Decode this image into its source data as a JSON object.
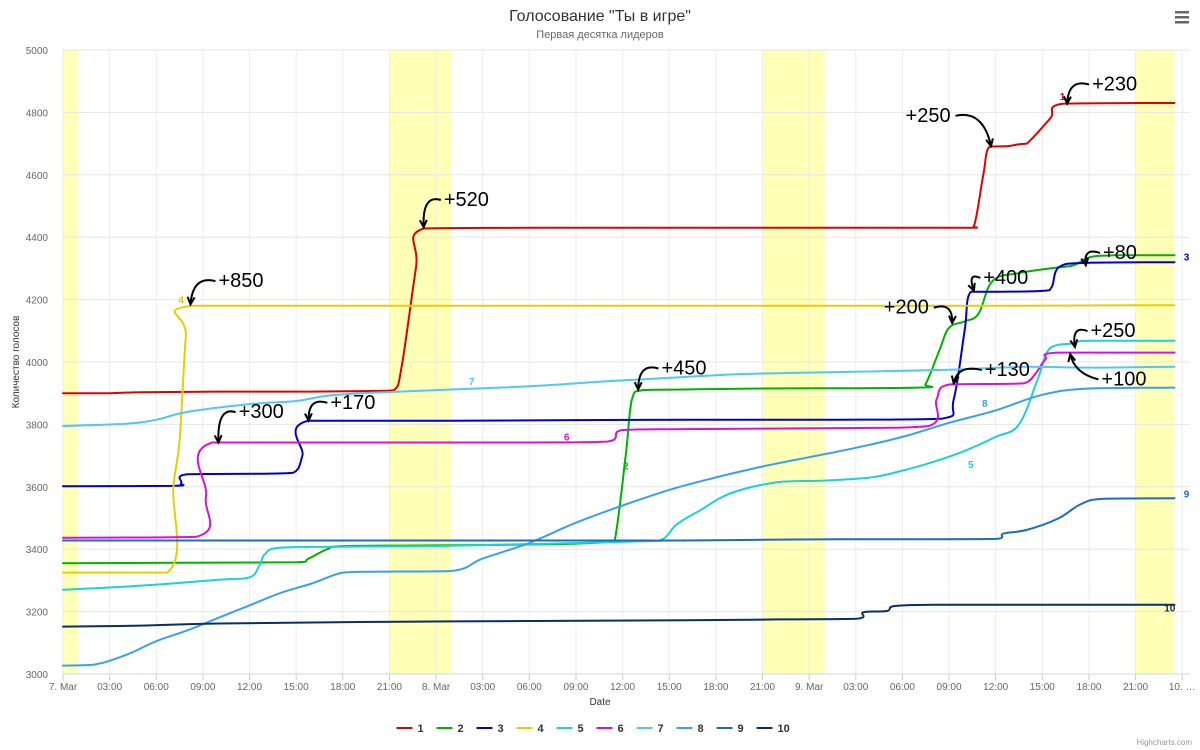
{
  "chart_data": {
    "type": "line",
    "title": "Голосование \"Ты в игре\"",
    "subtitle": "Первая десятка лидеров",
    "xlabel": "Date",
    "ylabel": "Количество голосов",
    "ylim": [
      3000,
      5000
    ],
    "yticks": [
      3000,
      3200,
      3400,
      3600,
      3800,
      4000,
      4200,
      4400,
      4600,
      4800,
      5000
    ],
    "xlim_hours": [
      0,
      72.5
    ],
    "xticks": [
      {
        "h": 0,
        "label": "7. Mar"
      },
      {
        "h": 3,
        "label": "03:00"
      },
      {
        "h": 6,
        "label": "06:00"
      },
      {
        "h": 9,
        "label": "09:00"
      },
      {
        "h": 12,
        "label": "12:00"
      },
      {
        "h": 15,
        "label": "15:00"
      },
      {
        "h": 18,
        "label": "18:00"
      },
      {
        "h": 21,
        "label": "21:00"
      },
      {
        "h": 24,
        "label": "8. Mar"
      },
      {
        "h": 27,
        "label": "03:00"
      },
      {
        "h": 30,
        "label": "06:00"
      },
      {
        "h": 33,
        "label": "09:00"
      },
      {
        "h": 36,
        "label": "12:00"
      },
      {
        "h": 39,
        "label": "15:00"
      },
      {
        "h": 42,
        "label": "18:00"
      },
      {
        "h": 45,
        "label": "21:00"
      },
      {
        "h": 48,
        "label": "9. Mar"
      },
      {
        "h": 51,
        "label": "03:00"
      },
      {
        "h": 54,
        "label": "06:00"
      },
      {
        "h": 57,
        "label": "09:00"
      },
      {
        "h": 60,
        "label": "12:00"
      },
      {
        "h": 63,
        "label": "15:00"
      },
      {
        "h": 66,
        "label": "18:00"
      },
      {
        "h": 69,
        "label": "21:00"
      },
      {
        "h": 72,
        "label": "10. …"
      }
    ],
    "night_bands": [
      [
        0,
        1
      ],
      [
        21,
        25
      ],
      [
        45,
        49
      ],
      [
        69,
        71.5
      ]
    ],
    "grid": true,
    "legend": "bottom-center",
    "series": [
      {
        "name": "1",
        "color": "#e00000",
        "label": "1",
        "points": [
          [
            0,
            3900
          ],
          [
            3,
            3900
          ],
          [
            5,
            3903
          ],
          [
            10,
            3905
          ],
          [
            16,
            3905
          ],
          [
            20,
            3907
          ],
          [
            21.3,
            3910
          ],
          [
            21.8,
            3990
          ],
          [
            22.7,
            4300
          ],
          [
            23.2,
            4428
          ],
          [
            30,
            4430
          ],
          [
            40,
            4430
          ],
          [
            50,
            4430
          ],
          [
            58,
            4430
          ],
          [
            58.6,
            4435
          ],
          [
            59.2,
            4600
          ],
          [
            59.6,
            4690
          ],
          [
            60.8,
            4692
          ],
          [
            61.5,
            4698
          ],
          [
            62,
            4700
          ],
          [
            63.5,
            4780
          ],
          [
            64.3,
            4828
          ],
          [
            70,
            4830
          ],
          [
            71.5,
            4830
          ]
        ]
      },
      {
        "name": "2",
        "color": "#00b300",
        "label": "2",
        "points": [
          [
            0,
            3355
          ],
          [
            10,
            3357
          ],
          [
            15,
            3358
          ],
          [
            15.8,
            3370
          ],
          [
            17,
            3400
          ],
          [
            18,
            3410
          ],
          [
            23,
            3412
          ],
          [
            30,
            3415
          ],
          [
            33,
            3418
          ],
          [
            35,
            3423
          ],
          [
            35.5,
            3430
          ],
          [
            36.2,
            3700
          ],
          [
            36.6,
            3880
          ],
          [
            37.3,
            3910
          ],
          [
            40,
            3912
          ],
          [
            45,
            3915
          ],
          [
            55,
            3918
          ],
          [
            55.5,
            3930
          ],
          [
            56.4,
            4040
          ],
          [
            57,
            4110
          ],
          [
            58,
            4130
          ],
          [
            58.9,
            4155
          ],
          [
            59.8,
            4260
          ],
          [
            61.5,
            4285
          ],
          [
            63.5,
            4300
          ],
          [
            65,
            4310
          ],
          [
            66,
            4335
          ],
          [
            67.5,
            4342
          ],
          [
            71.5,
            4342
          ]
        ]
      },
      {
        "name": "3",
        "color": "#0000cc",
        "label": "3",
        "points": [
          [
            0,
            3602
          ],
          [
            7,
            3603
          ],
          [
            7.6,
            3612
          ],
          [
            8,
            3640
          ],
          [
            13,
            3642
          ],
          [
            14.8,
            3645
          ],
          [
            15.4,
            3700
          ],
          [
            15.8,
            3812
          ],
          [
            25,
            3812
          ],
          [
            40,
            3815
          ],
          [
            50,
            3815
          ],
          [
            56.5,
            3818
          ],
          [
            57.3,
            3880
          ],
          [
            58,
            4100
          ],
          [
            58.4,
            4225
          ],
          [
            60,
            4225
          ],
          [
            63,
            4228
          ],
          [
            63.6,
            4240
          ],
          [
            64.1,
            4305
          ],
          [
            66,
            4318
          ],
          [
            71.5,
            4320
          ]
        ]
      },
      {
        "name": "4",
        "color": "#e3d000",
        "label": "4",
        "points": [
          [
            0,
            3325
          ],
          [
            6.7,
            3325
          ],
          [
            7.1,
            3600
          ],
          [
            7.5,
            3750
          ],
          [
            7.9,
            4080
          ],
          [
            8.2,
            4180
          ],
          [
            20,
            4180
          ],
          [
            40,
            4180
          ],
          [
            60,
            4180
          ],
          [
            71.5,
            4182
          ]
        ]
      },
      {
        "name": "5",
        "color": "#1dd1d6",
        "label": "5",
        "points": [
          [
            0,
            3270
          ],
          [
            4,
            3280
          ],
          [
            7,
            3290
          ],
          [
            10,
            3302
          ],
          [
            12,
            3310
          ],
          [
            12.6,
            3345
          ],
          [
            13,
            3385
          ],
          [
            14,
            3405
          ],
          [
            18,
            3408
          ],
          [
            24,
            3410
          ],
          [
            37,
            3425
          ],
          [
            38.5,
            3430
          ],
          [
            39.5,
            3480
          ],
          [
            41,
            3525
          ],
          [
            43,
            3580
          ],
          [
            46,
            3615
          ],
          [
            49,
            3620
          ],
          [
            52,
            3630
          ],
          [
            54,
            3652
          ],
          [
            56,
            3680
          ],
          [
            58,
            3715
          ],
          [
            60,
            3760
          ],
          [
            61.5,
            3800
          ],
          [
            62.7,
            3945
          ],
          [
            63.5,
            4045
          ],
          [
            65,
            4060
          ],
          [
            66,
            4068
          ],
          [
            71.5,
            4068
          ]
        ]
      },
      {
        "name": "6",
        "color": "#d812d8",
        "label": "6",
        "points": [
          [
            0,
            3437
          ],
          [
            8.6,
            3440
          ],
          [
            9.2,
            3570
          ],
          [
            9.6,
            3742
          ],
          [
            20,
            3742
          ],
          [
            30,
            3742
          ],
          [
            35,
            3745
          ],
          [
            36,
            3782
          ],
          [
            40,
            3785
          ],
          [
            50,
            3788
          ],
          [
            55.7,
            3795
          ],
          [
            56.2,
            3880
          ],
          [
            57,
            3928
          ],
          [
            61,
            3930
          ],
          [
            62,
            3935
          ],
          [
            62.6,
            3965
          ],
          [
            63.2,
            4008
          ],
          [
            64,
            4030
          ],
          [
            71.5,
            4030
          ]
        ]
      },
      {
        "name": "7",
        "color": "#50c8f5",
        "label": "7",
        "points": [
          [
            0,
            3795
          ],
          [
            4,
            3802
          ],
          [
            6,
            3815
          ],
          [
            8,
            3840
          ],
          [
            12,
            3865
          ],
          [
            15,
            3875
          ],
          [
            17,
            3892
          ],
          [
            20,
            3902
          ],
          [
            25,
            3912
          ],
          [
            30,
            3922
          ],
          [
            35,
            3938
          ],
          [
            40,
            3952
          ],
          [
            44,
            3962
          ],
          [
            50,
            3968
          ],
          [
            57,
            3975
          ],
          [
            62,
            3985
          ],
          [
            66,
            3982
          ],
          [
            71.5,
            3985
          ]
        ]
      },
      {
        "name": "8",
        "color": "#3a9ff2",
        "label": "8",
        "points": [
          [
            0,
            3027
          ],
          [
            2,
            3030
          ],
          [
            4,
            3060
          ],
          [
            6,
            3105
          ],
          [
            8,
            3140
          ],
          [
            10,
            3180
          ],
          [
            12,
            3220
          ],
          [
            14,
            3260
          ],
          [
            16,
            3290
          ],
          [
            18,
            3325
          ],
          [
            20,
            3328
          ],
          [
            25,
            3330
          ],
          [
            27,
            3370
          ],
          [
            30,
            3420
          ],
          [
            33,
            3485
          ],
          [
            36,
            3540
          ],
          [
            39,
            3590
          ],
          [
            42,
            3630
          ],
          [
            45,
            3665
          ],
          [
            48,
            3695
          ],
          [
            51,
            3725
          ],
          [
            54,
            3760
          ],
          [
            57,
            3805
          ],
          [
            60,
            3845
          ],
          [
            63,
            3895
          ],
          [
            66,
            3915
          ],
          [
            71.5,
            3918
          ]
        ]
      },
      {
        "name": "9",
        "color": "#1f6ac3",
        "label": "9",
        "points": [
          [
            0,
            3428
          ],
          [
            10,
            3428
          ],
          [
            20,
            3428
          ],
          [
            30,
            3428
          ],
          [
            40,
            3428
          ],
          [
            45,
            3430
          ],
          [
            50,
            3432
          ],
          [
            56,
            3432
          ],
          [
            60,
            3433
          ],
          [
            60.5,
            3450
          ],
          [
            62,
            3462
          ],
          [
            64,
            3498
          ],
          [
            65.5,
            3545
          ],
          [
            67,
            3562
          ],
          [
            71.5,
            3563
          ]
        ]
      },
      {
        "name": "10",
        "color": "#0a2f66",
        "label": "10",
        "points": [
          [
            0,
            3152
          ],
          [
            5,
            3155
          ],
          [
            10,
            3162
          ],
          [
            20,
            3167
          ],
          [
            30,
            3170
          ],
          [
            40,
            3172
          ],
          [
            46,
            3175
          ],
          [
            51,
            3177
          ],
          [
            51.5,
            3198
          ],
          [
            53,
            3202
          ],
          [
            53.5,
            3218
          ],
          [
            56,
            3222
          ],
          [
            62,
            3222
          ],
          [
            71.5,
            3222
          ]
        ]
      }
    ],
    "annotations": [
      {
        "text": "+850",
        "x": 10,
        "y": 4240,
        "arrow_to": [
          8.2,
          4185
        ]
      },
      {
        "text": "+520",
        "x": 24.5,
        "y": 4500,
        "arrow_to": [
          23.2,
          4432
        ]
      },
      {
        "text": "+300",
        "x": 11.3,
        "y": 3820,
        "arrow_to": [
          10,
          3742
        ]
      },
      {
        "text": "+170",
        "x": 17.2,
        "y": 3850,
        "arrow_to": [
          15.8,
          3812
        ]
      },
      {
        "text": "+450",
        "x": 38.5,
        "y": 3960,
        "arrow_to": [
          37,
          3912
        ]
      },
      {
        "text": "+250",
        "x": 54.2,
        "y": 4770,
        "arrow_to": [
          59.7,
          4692
        ]
      },
      {
        "text": "+230",
        "x": 66.2,
        "y": 4870,
        "arrow_to": [
          64.6,
          4828
        ]
      },
      {
        "text": "+200",
        "x": 52.8,
        "y": 4155,
        "arrow_to": [
          57.2,
          4125
        ]
      },
      {
        "text": "+400",
        "x": 59.2,
        "y": 4250,
        "arrow_to": [
          58.6,
          4228
        ]
      },
      {
        "text": "+80",
        "x": 66.9,
        "y": 4330,
        "arrow_to": [
          65.8,
          4310
        ]
      },
      {
        "text": "+130",
        "x": 59.3,
        "y": 3955,
        "arrow_to": [
          57.3,
          3932
        ]
      },
      {
        "text": "+250",
        "x": 66.1,
        "y": 4080,
        "arrow_to": [
          65.1,
          4048
        ]
      },
      {
        "text": "+100",
        "x": 66.8,
        "y": 3925,
        "arrow_to": [
          64.8,
          4025
        ]
      }
    ]
  },
  "credits": "Highcharts.com",
  "menu_icon": "hamburger-menu-icon"
}
